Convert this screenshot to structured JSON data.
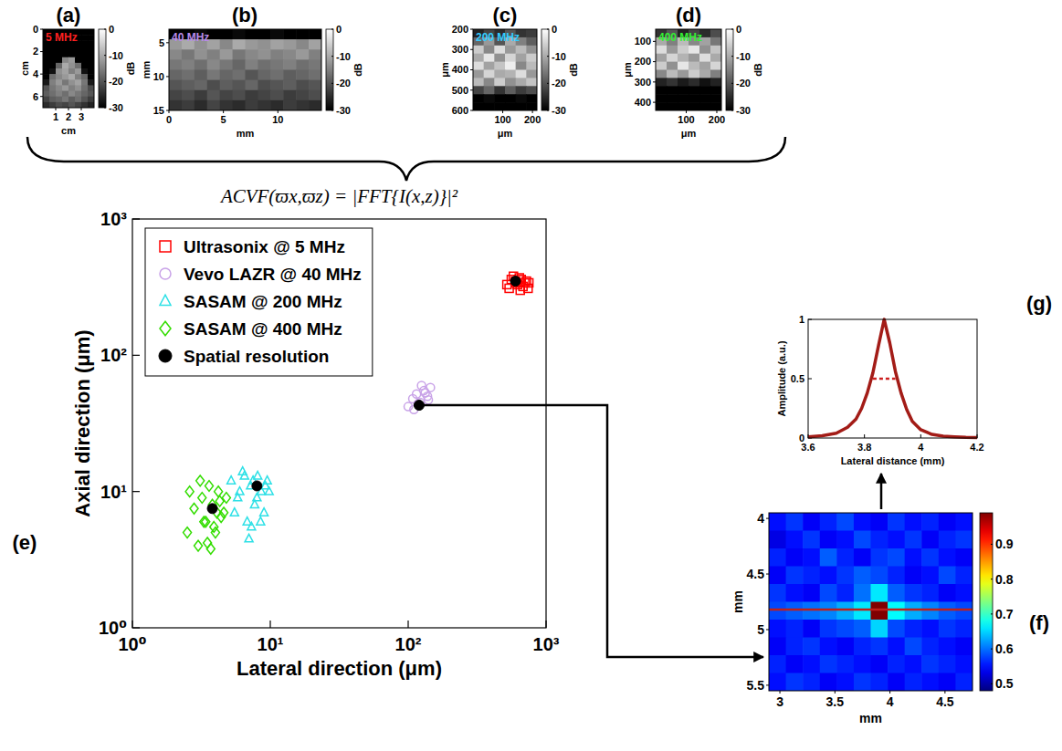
{
  "chart_data": [
    {
      "type": "image",
      "panel": "(a)",
      "title": "5 MHz",
      "color": "#ff2020",
      "x_label": "cm",
      "y_label": "cm",
      "xlim": [
        0,
        4
      ],
      "ylim": [
        0,
        7
      ],
      "xticks": [
        1,
        2,
        3
      ],
      "yticks": [
        0,
        2,
        4,
        6
      ],
      "cells": [
        [
          -30,
          -30,
          -30,
          -30,
          -30,
          -30,
          -30,
          -30
        ],
        [
          -30,
          -30,
          -30,
          -30,
          -30,
          -30,
          -30,
          -30
        ],
        [
          -30,
          -30,
          -30,
          -30,
          -30,
          -30,
          -30,
          -30
        ],
        [
          -30,
          -30,
          -30,
          -30,
          -30,
          -30,
          -30,
          -30
        ],
        [
          -30,
          -30,
          -30,
          -30,
          -30,
          -30,
          -30,
          -30
        ],
        [
          -30,
          -30,
          -30,
          -14,
          -12,
          -30,
          -30,
          -30
        ],
        [
          -30,
          -30,
          -18,
          -10,
          -13,
          -17,
          -30,
          -30
        ],
        [
          -30,
          -28,
          -13,
          -11,
          -15,
          -12,
          -28,
          -30
        ],
        [
          -30,
          -17,
          -14,
          -12,
          -10,
          -15,
          -18,
          -30
        ],
        [
          -27,
          -15,
          -12,
          -16,
          -13,
          -11,
          -16,
          -27
        ],
        [
          -20,
          -16,
          -14,
          -12,
          -15,
          -13,
          -17,
          -21
        ],
        [
          -19,
          -17,
          -15,
          -17,
          -14,
          -16,
          -18,
          -20
        ],
        [
          -22,
          -19,
          -18,
          -16,
          -19,
          -17,
          -20,
          -23
        ],
        [
          -25,
          -23,
          -21,
          -22,
          -20,
          -22,
          -24,
          -26
        ]
      ],
      "colorbar": {
        "label": "dB",
        "range": [
          -30,
          0
        ],
        "ticks": [
          0,
          -10,
          -20,
          -30
        ]
      }
    },
    {
      "type": "image",
      "panel": "(b)",
      "title": "40 MHz",
      "color": "#b88ae8",
      "x_label": "mm",
      "y_label": "mm",
      "xlim": [
        0,
        14
      ],
      "ylim": [
        3,
        15
      ],
      "xticks": [
        0,
        5,
        10
      ],
      "yticks": [
        5,
        10,
        15
      ],
      "cells": [
        [
          -30,
          -30,
          -29,
          -30,
          -30,
          -29,
          -30,
          -30,
          -29,
          -30,
          -30,
          -30
        ],
        [
          -12,
          -10,
          -13,
          -11,
          -14,
          -10,
          -12,
          -13,
          -11,
          -12,
          -14,
          -11
        ],
        [
          -14,
          -16,
          -13,
          -15,
          -12,
          -16,
          -14,
          -13,
          -15,
          -14,
          -12,
          -15
        ],
        [
          -16,
          -15,
          -17,
          -14,
          -16,
          -18,
          -15,
          -17,
          -16,
          -15,
          -17,
          -16
        ],
        [
          -18,
          -17,
          -19,
          -16,
          -18,
          -17,
          -20,
          -18,
          -17,
          -19,
          -18,
          -17
        ],
        [
          -20,
          -19,
          -18,
          -21,
          -19,
          -20,
          -18,
          -21,
          -20,
          -19,
          -21,
          -20
        ],
        [
          -22,
          -21,
          -23,
          -20,
          -22,
          -21,
          -23,
          -22,
          -21,
          -23,
          -22,
          -21
        ],
        [
          -24,
          -23,
          -25,
          -22,
          -24,
          -25,
          -23,
          -24,
          -25,
          -23,
          -24,
          -25
        ]
      ],
      "colorbar": {
        "label": "dB",
        "range": [
          -30,
          0
        ],
        "ticks": [
          0,
          -10,
          -20,
          -30
        ]
      }
    },
    {
      "type": "image",
      "panel": "(c)",
      "title": "200 MHz",
      "color": "#33ccff",
      "x_label": "μm",
      "y_label": "μm",
      "xlim": [
        0,
        215
      ],
      "ylim": [
        200,
        600
      ],
      "xticks": [
        100,
        200
      ],
      "yticks": [
        200,
        300,
        400,
        500,
        600
      ],
      "cells": [
        [
          -26,
          -22,
          -25,
          -20,
          -24,
          -23
        ],
        [
          -18,
          -12,
          -20,
          -10,
          -15,
          -19
        ],
        [
          -6,
          -14,
          -4,
          -12,
          -8,
          -13
        ],
        [
          -10,
          -3,
          -13,
          -5,
          -11,
          -6
        ],
        [
          -4,
          -11,
          -7,
          -2,
          -14,
          -8
        ],
        [
          -12,
          -5,
          -10,
          -9,
          -4,
          -12
        ],
        [
          -8,
          -14,
          -6,
          -13,
          -10,
          -7
        ],
        [
          -22,
          -18,
          -24,
          -19,
          -23,
          -21
        ],
        [
          -30,
          -29,
          -30,
          -30,
          -29,
          -30
        ],
        [
          -30,
          -30,
          -30,
          -30,
          -30,
          -30
        ]
      ],
      "colorbar": {
        "label": "dB",
        "range": [
          -30,
          0
        ],
        "ticks": [
          0,
          -10,
          -20,
          -30
        ]
      }
    },
    {
      "type": "image",
      "panel": "(d)",
      "title": "400 MHz",
      "color": "#33ee33",
      "x_label": "μm",
      "y_label": "μm",
      "xlim": [
        0,
        215
      ],
      "ylim": [
        40,
        440
      ],
      "xticks": [
        100,
        200
      ],
      "yticks": [
        100,
        200,
        300,
        400
      ],
      "cells": [
        [
          -24,
          -20,
          -26,
          -22,
          -25,
          -21
        ],
        [
          -10,
          -15,
          -8,
          -14,
          -11,
          -16
        ],
        [
          -4,
          -12,
          -6,
          -3,
          -13,
          -7
        ],
        [
          -11,
          -5,
          -9,
          -12,
          -4,
          -10
        ],
        [
          -6,
          -13,
          -3,
          -8,
          -11,
          -5
        ],
        [
          -14,
          -8,
          -12,
          -6,
          -10,
          -15
        ],
        [
          -26,
          -24,
          -27,
          -25,
          -28,
          -26
        ],
        [
          -30,
          -30,
          -30,
          -30,
          -30,
          -30
        ],
        [
          -30,
          -30,
          -30,
          -30,
          -30,
          -30
        ],
        [
          -30,
          -30,
          -30,
          -30,
          -30,
          -30
        ]
      ],
      "colorbar": {
        "label": "dB",
        "range": [
          -30,
          0
        ],
        "ticks": [
          0,
          -10,
          -20,
          -30
        ]
      }
    },
    {
      "type": "scatter",
      "panel": "(e)",
      "annotations": [
        "ACVF(ϖx,ϖz) = |FFT{I(x,z)}|²"
      ],
      "x_label": "Lateral direction (μm)",
      "y_label": "Axial direction (μm)",
      "log": true,
      "xlim": [
        1,
        1000
      ],
      "ylim": [
        1,
        1000
      ],
      "xticks": [
        {
          "value": 1,
          "label": "10⁰"
        },
        {
          "value": 10,
          "label": "10¹"
        },
        {
          "value": 100,
          "label": "10²"
        },
        {
          "value": 1000,
          "label": "10³"
        }
      ],
      "yticks": [
        {
          "value": 1,
          "label": "10⁰"
        },
        {
          "value": 10,
          "label": "10¹"
        },
        {
          "value": 100,
          "label": "10²"
        },
        {
          "value": 1000,
          "label": "10³"
        }
      ],
      "legend": "upper left",
      "series": [
        {
          "name": "Ultrasonix @ 5 MHz",
          "color": "#ff0000",
          "marker": "square",
          "x": [
            520,
            560,
            600,
            640,
            680,
            720,
            750,
            540,
            580,
            620,
            660,
            700,
            740,
            600,
            650
          ],
          "values": [
            330,
            360,
            340,
            370,
            320,
            350,
            340,
            310,
            380,
            330,
            360,
            340,
            310,
            350,
            300
          ]
        },
        {
          "name": "Vevo LAZR @ 40 MHz",
          "color": "#c9a3e8",
          "marker": "circle",
          "x": [
            100,
            108,
            115,
            122,
            130,
            138,
            145,
            110,
            125,
            140,
            118,
            133
          ],
          "values": [
            42,
            48,
            52,
            45,
            55,
            50,
            58,
            40,
            60,
            47,
            44,
            53
          ]
        },
        {
          "name": "SASAM @ 200 MHz",
          "color": "#2ee0e6",
          "marker": "triangle",
          "x": [
            5.2,
            5.8,
            6.3,
            6.8,
            7.2,
            7.7,
            8.1,
            8.6,
            9,
            9.5,
            6,
            7,
            8,
            9.2,
            5.5,
            6.5,
            7.5,
            8.5,
            9.8,
            7.3
          ],
          "values": [
            12,
            9,
            14,
            6,
            11,
            8,
            13,
            10,
            7,
            12,
            10,
            4.5,
            9,
            11,
            7,
            13,
            12,
            6,
            10,
            5.5
          ]
        },
        {
          "name": "SASAM @ 400 MHz",
          "color": "#33dd00",
          "marker": "diamond",
          "x": [
            2.5,
            2.8,
            3,
            3.2,
            3.4,
            3.6,
            3.8,
            4,
            4.2,
            4.4,
            4.6,
            4.8,
            3.1,
            3.5,
            3.9,
            4.3,
            2.6,
            3.3,
            3.7,
            4.1
          ],
          "values": [
            5,
            7.5,
            4,
            9,
            6,
            11,
            8,
            5,
            10,
            6.5,
            7,
            9,
            12,
            4.2,
            5.5,
            8.5,
            10,
            6,
            3.8,
            7
          ]
        },
        {
          "name": "Spatial resolution",
          "color": "#000000",
          "marker": "dot",
          "x": [
            600,
            120,
            8,
            3.8
          ],
          "values": [
            350,
            43,
            11,
            7.5
          ]
        }
      ]
    },
    {
      "type": "heatmap",
      "panel": "(f)",
      "x_label": "mm",
      "y_label": "mm",
      "xlim": [
        2.9,
        4.75
      ],
      "ylim": [
        3.95,
        5.55
      ],
      "xticks": [
        3,
        3.5,
        4,
        4.5
      ],
      "yticks": [
        4,
        4.5,
        5,
        5.5
      ],
      "cells": [
        [
          0.55,
          0.57,
          0.54,
          0.56,
          0.58,
          0.55,
          0.54,
          0.57,
          0.55,
          0.56,
          0.54,
          0.55
        ],
        [
          0.53,
          0.55,
          0.57,
          0.54,
          0.55,
          0.58,
          0.56,
          0.55,
          0.57,
          0.54,
          0.56,
          0.57
        ],
        [
          0.56,
          0.54,
          0.55,
          0.59,
          0.56,
          0.54,
          0.57,
          0.58,
          0.55,
          0.57,
          0.55,
          0.54
        ],
        [
          0.54,
          0.57,
          0.56,
          0.55,
          0.57,
          0.59,
          0.58,
          0.56,
          0.54,
          0.55,
          0.58,
          0.56
        ],
        [
          0.57,
          0.55,
          0.54,
          0.58,
          0.56,
          0.6,
          0.66,
          0.59,
          0.57,
          0.56,
          0.54,
          0.55
        ],
        [
          0.58,
          0.59,
          0.6,
          0.61,
          0.63,
          0.66,
          0.99,
          0.67,
          0.63,
          0.61,
          0.59,
          0.58
        ],
        [
          0.55,
          0.56,
          0.54,
          0.57,
          0.58,
          0.59,
          0.65,
          0.58,
          0.56,
          0.55,
          0.57,
          0.56
        ],
        [
          0.54,
          0.56,
          0.57,
          0.55,
          0.54,
          0.56,
          0.57,
          0.55,
          0.58,
          0.56,
          0.55,
          0.54
        ],
        [
          0.56,
          0.54,
          0.55,
          0.57,
          0.56,
          0.55,
          0.54,
          0.56,
          0.55,
          0.57,
          0.56,
          0.55
        ],
        [
          0.55,
          0.57,
          0.56,
          0.54,
          0.55,
          0.57,
          0.56,
          0.54,
          0.56,
          0.55,
          0.54,
          0.56
        ]
      ],
      "colorbar": {
        "range": [
          0.48,
          0.99
        ],
        "ticks": [
          0.5,
          0.6,
          0.7,
          0.8,
          0.9
        ]
      },
      "profile_y": 4.82,
      "color": "#c0201a"
    },
    {
      "type": "line",
      "panel": "(g)",
      "x_label": "Lateral distance (mm)",
      "y_label": "Amplitude (a.u.)",
      "xlim": [
        3.6,
        4.2
      ],
      "ylim": [
        0,
        1
      ],
      "xticks": [
        3.6,
        3.8,
        4,
        4.2
      ],
      "yticks": [
        0,
        0.5,
        1
      ],
      "color": "#a31c17",
      "x": [
        3.6,
        3.65,
        3.7,
        3.74,
        3.77,
        3.79,
        3.81,
        3.83,
        3.85,
        3.87,
        3.89,
        3.91,
        3.93,
        3.95,
        3.97,
        4,
        4.04,
        4.08,
        4.12,
        4.16,
        4.2
      ],
      "values": [
        0.01,
        0.02,
        0.04,
        0.09,
        0.16,
        0.25,
        0.38,
        0.55,
        0.78,
        1,
        0.8,
        0.56,
        0.38,
        0.24,
        0.14,
        0.07,
        0.03,
        0.015,
        0.01,
        0.005,
        0.003
      ],
      "fwhm": {
        "x": [
          3.83,
          3.91
        ],
        "value": 0.5,
        "color": "#cc2020",
        "line_style": "dashed"
      }
    }
  ]
}
